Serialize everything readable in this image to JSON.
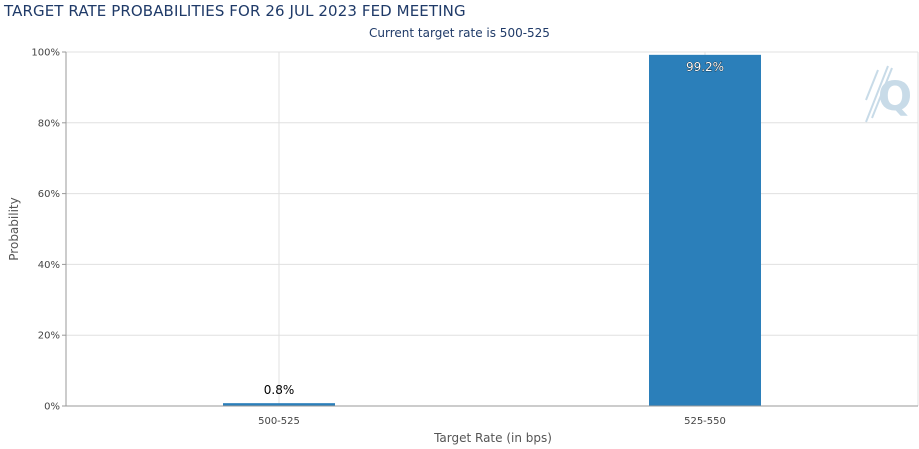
{
  "header": {
    "title": "TARGET RATE PROBABILITIES FOR 26 JUL 2023 FED MEETING",
    "subtitle": "Current target rate is 500-525"
  },
  "colors": {
    "bar": "#2b7fba",
    "grid": "#e0e0e0",
    "axis": "#999999",
    "title": "#1f3a68"
  },
  "chart_data": {
    "type": "bar",
    "categories": [
      "500-525",
      "525-550"
    ],
    "values": [
      0.8,
      99.2
    ],
    "data_labels": [
      "0.8%",
      "99.2%"
    ],
    "title": "TARGET RATE PROBABILITIES FOR 26 JUL 2023 FED MEETING",
    "subtitle": "Current target rate is 500-525",
    "xlabel": "Target Rate (in bps)",
    "ylabel": "Probability",
    "ylim": [
      0,
      100
    ],
    "yticks": [
      0,
      20,
      40,
      60,
      80,
      100
    ],
    "ytick_labels": [
      "0%",
      "20%",
      "40%",
      "60%",
      "80%",
      "100%"
    ],
    "grid": true,
    "legend": "none"
  }
}
